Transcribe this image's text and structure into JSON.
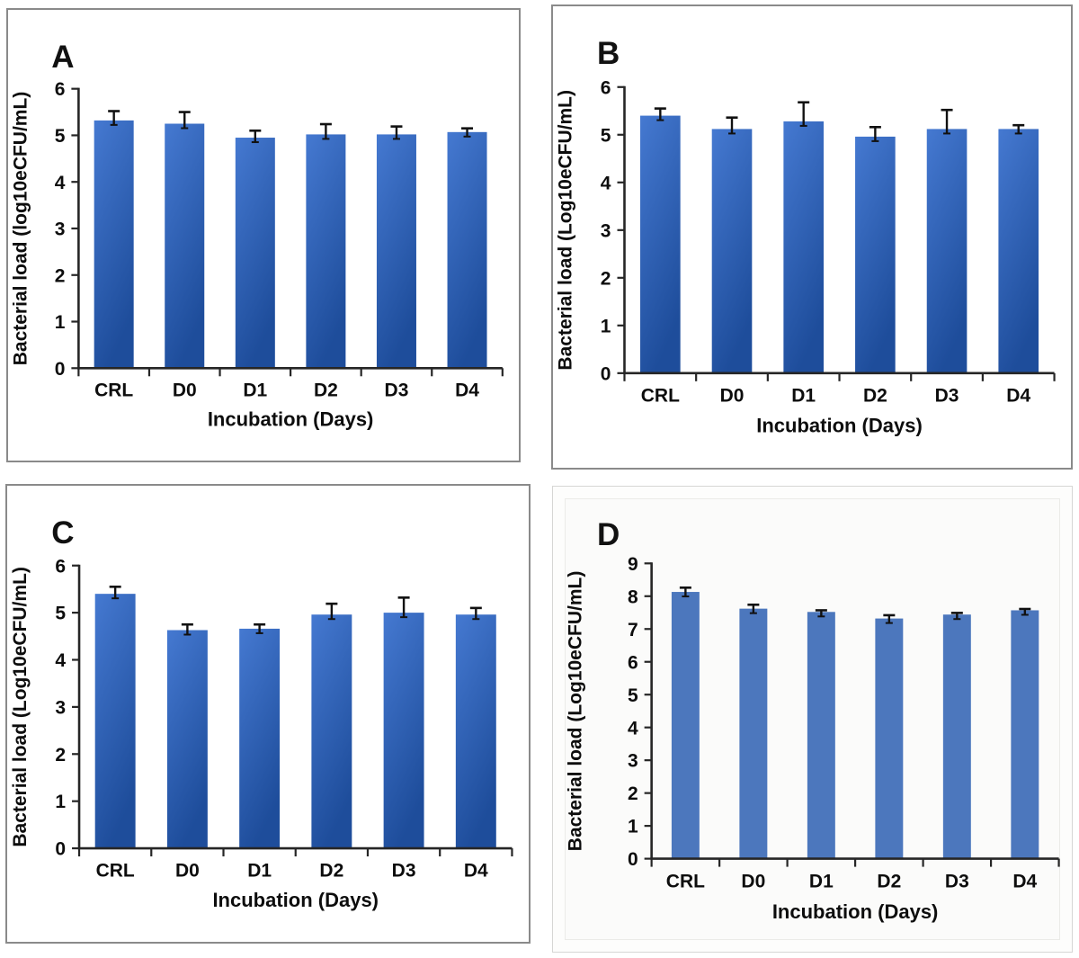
{
  "figure": {
    "description": "Four-panel bar figure of bacterial load over incubation days",
    "panels": [
      "A",
      "B",
      "C",
      "D"
    ]
  },
  "colors": {
    "bar_gradient_top": "#4579d1",
    "bar_gradient_bottom": "#1e4d9b",
    "bar_flat": "#4c77bd",
    "axis": "#262626",
    "error_bar": "#111111",
    "panel_border_dark": "#8a8a8a",
    "panel_border_light": "#d6d6d4"
  },
  "chart_data": [
    {
      "type": "bar",
      "panel_label": "A",
      "title": "",
      "categories": [
        "CRL",
        "D0",
        "D1",
        "D2",
        "D3",
        "D4"
      ],
      "values": [
        5.32,
        5.25,
        4.95,
        5.02,
        5.02,
        5.07
      ],
      "errors": [
        0.2,
        0.25,
        0.15,
        0.22,
        0.17,
        0.08
      ],
      "xlabel": "Incubation (Days)",
      "ylabel": "Bacterial load (log10eCFU/mL)",
      "ylim": [
        0,
        6
      ],
      "ytick_step": 1,
      "grid": false,
      "legend": "none",
      "bar_style": "gradient"
    },
    {
      "type": "bar",
      "panel_label": "B",
      "title": "",
      "categories": [
        "CRL",
        "D0",
        "D1",
        "D2",
        "D3",
        "D4"
      ],
      "values": [
        5.4,
        5.12,
        5.28,
        4.96,
        5.12,
        5.12
      ],
      "errors": [
        0.15,
        0.24,
        0.4,
        0.2,
        0.4,
        0.08
      ],
      "xlabel": "Incubation (Days)",
      "ylabel": "Bacterial load (Log10eCFU/mL)",
      "ylim": [
        0,
        6
      ],
      "ytick_step": 1,
      "grid": false,
      "legend": "none",
      "bar_style": "gradient"
    },
    {
      "type": "bar",
      "panel_label": "C",
      "title": "",
      "categories": [
        "CRL",
        "D0",
        "D1",
        "D2",
        "D3",
        "D4"
      ],
      "values": [
        5.4,
        4.63,
        4.66,
        4.96,
        5.0,
        4.96
      ],
      "errors": [
        0.15,
        0.12,
        0.09,
        0.23,
        0.32,
        0.14
      ],
      "xlabel": "Incubation (Days)",
      "ylabel": "Bacterial load (Log10eCFU/mL)",
      "ylim": [
        0,
        6
      ],
      "ytick_step": 1,
      "grid": false,
      "legend": "none",
      "bar_style": "gradient"
    },
    {
      "type": "bar",
      "panel_label": "D",
      "title": "",
      "categories": [
        "CRL",
        "D0",
        "D1",
        "D2",
        "D3",
        "D4"
      ],
      "values": [
        8.13,
        7.62,
        7.52,
        7.32,
        7.44,
        7.57
      ],
      "errors": [
        0.13,
        0.12,
        0.05,
        0.1,
        0.05,
        0.04
      ],
      "xlabel": "Incubation (Days)",
      "ylabel": "Bacterial load (Log10eCFU/mL)",
      "ylim": [
        0,
        9
      ],
      "ytick_step": 1,
      "grid": false,
      "legend": "none",
      "bar_style": "flat"
    }
  ]
}
